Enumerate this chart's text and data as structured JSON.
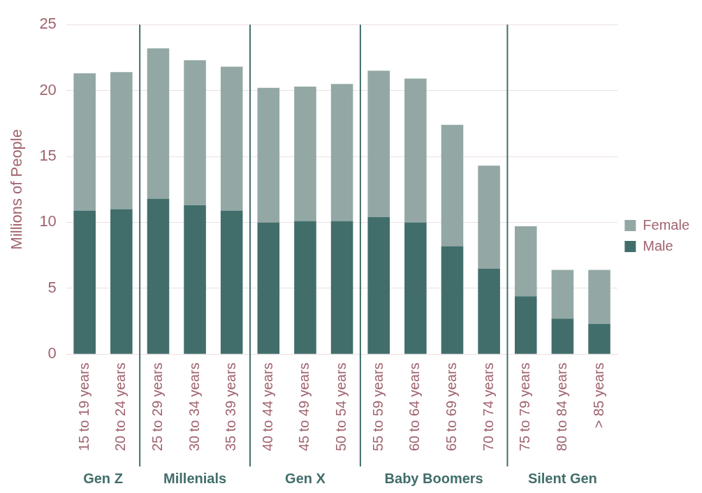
{
  "chart_data": {
    "type": "bar",
    "ylabel": "Millions of People",
    "stacked": true,
    "categories": [
      "15 to 19 years",
      "20 to 24 years",
      "25 to 29 years",
      "30 to 34 years",
      "35 to 39 years",
      "40 to 44 years",
      "45 to 49 years",
      "50 to 54 years",
      "55 to 59 years",
      "60 to 64 years",
      "65 to 69 years",
      "70 to 74 years",
      "75 to 79 years",
      "80 to 84 years",
      "> 85 years"
    ],
    "series": [
      {
        "name": "Male",
        "color": "#416e6b",
        "values": [
          10.9,
          11.0,
          11.8,
          11.3,
          10.9,
          10.0,
          10.1,
          10.1,
          10.4,
          10.0,
          8.2,
          6.5,
          4.4,
          2.7,
          2.3
        ]
      },
      {
        "name": "Female",
        "color": "#93a8a5",
        "values": [
          10.4,
          10.4,
          11.4,
          11.0,
          10.9,
          10.2,
          10.2,
          10.4,
          11.1,
          10.9,
          9.2,
          7.8,
          5.3,
          3.7,
          4.1
        ]
      }
    ],
    "ylim": [
      0,
      25
    ],
    "yticks": [
      0,
      5,
      10,
      15,
      20,
      25
    ],
    "grid": "y",
    "legend": "right",
    "annotations": [
      "Gen Z",
      "Millenials",
      "Gen X",
      "Baby Boomers",
      "Silent Gen"
    ]
  }
}
